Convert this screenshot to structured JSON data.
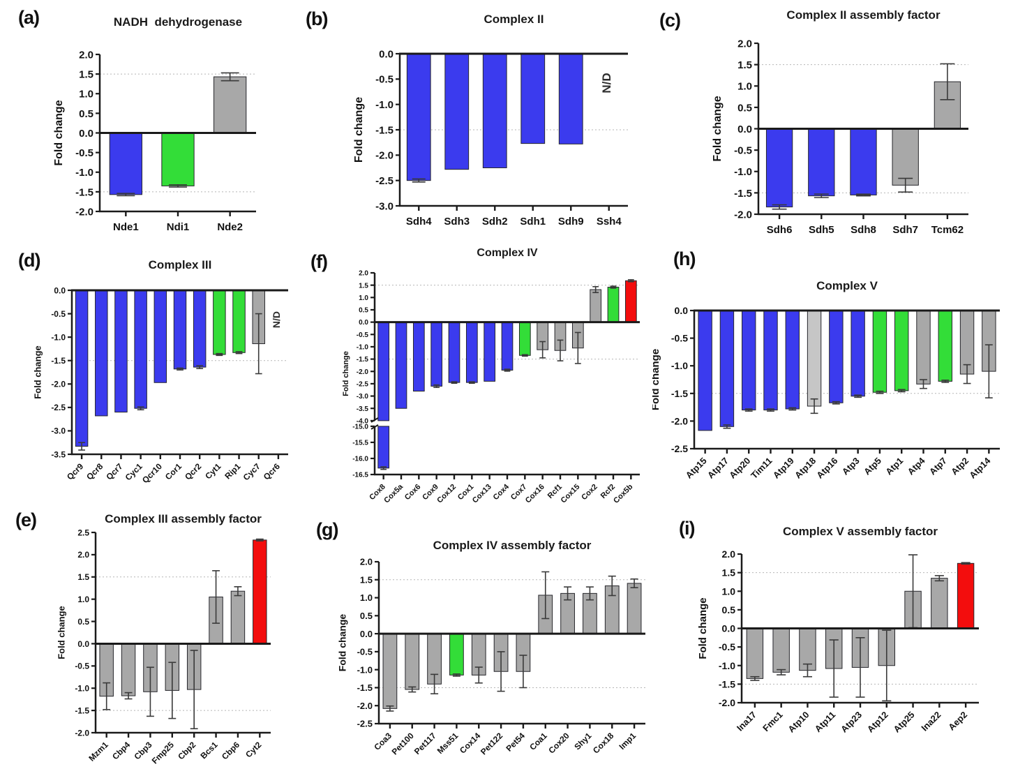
{
  "figure": {
    "background": "#ffffff",
    "colors": {
      "blue": "#3b3bee",
      "green": "#33dd38",
      "gray": "#a8a8a8",
      "lightgray": "#c6c6c6",
      "red": "#f30d0d",
      "bar_stroke": "#26262b",
      "error_bar": "#3a3a3a",
      "axis": "#1a1a1a",
      "ref_line": "#b5b5b5",
      "text": "#111111"
    }
  },
  "chart_data": [
    {
      "type": "bar",
      "panel": "(a)",
      "title": "NADH  dehydrogenase",
      "ylabel": "Fold change",
      "ylim": [
        2.0,
        -2.0
      ],
      "yticks": [
        2.0,
        1.5,
        1.0,
        0.5,
        0.0,
        -0.5,
        -1.0,
        -1.5,
        -2.0
      ],
      "ref_lines": [
        1.5,
        -1.5
      ],
      "categories": [
        "Nde1",
        "Ndi1",
        "Nde2"
      ],
      "values": [
        -1.57,
        -1.35,
        1.43
      ],
      "errors": [
        0.03,
        0.03,
        0.1
      ],
      "colors": [
        "blue",
        "green",
        "gray"
      ]
    },
    {
      "type": "bar",
      "panel": "(b)",
      "title": "Complex II",
      "ylabel": "Fold change",
      "ylim": [
        0.0,
        -3.0
      ],
      "yticks": [
        0.0,
        -0.5,
        -1.0,
        -1.5,
        -2.0,
        -2.5,
        -3.0
      ],
      "ref_lines": [
        -1.5
      ],
      "nd_text": "N/D",
      "categories": [
        "Sdh4",
        "Sdh3",
        "Sdh2",
        "Sdh1",
        "Sdh9",
        "Ssh4"
      ],
      "values": [
        -2.5,
        -2.28,
        -2.25,
        -1.77,
        -1.78,
        null
      ],
      "errors": [
        0.03,
        0,
        0,
        0,
        0,
        0
      ],
      "colors": [
        "blue",
        "blue",
        "blue",
        "blue",
        "blue",
        null
      ]
    },
    {
      "type": "bar",
      "panel": "(c)",
      "title": "Complex II assembly factor",
      "ylabel": "Fold change",
      "ylim": [
        2.0,
        -2.0
      ],
      "yticks": [
        2.0,
        1.5,
        1.0,
        0.5,
        0.0,
        -0.5,
        -1.0,
        -1.5,
        -2.0
      ],
      "ref_lines": [
        1.5,
        -1.5
      ],
      "categories": [
        "Sdh6",
        "Sdh5",
        "Sdh8",
        "Sdh7",
        "Tcm62"
      ],
      "values": [
        -1.83,
        -1.57,
        -1.55,
        -1.32,
        1.1
      ],
      "errors": [
        0.05,
        0.04,
        0.02,
        0.16,
        0.42
      ],
      "colors": [
        "blue",
        "blue",
        "blue",
        "gray",
        "gray"
      ]
    },
    {
      "type": "bar",
      "panel": "(d)",
      "title": "Complex III",
      "ylabel": "Fold change",
      "ylim": [
        0.0,
        -3.5
      ],
      "yticks": [
        0.0,
        -0.5,
        -1.0,
        -1.5,
        -2.0,
        -2.5,
        -3.0,
        -3.5
      ],
      "ref_lines": [
        -1.5
      ],
      "nd_text": "N/D",
      "categories": [
        "Qcr9",
        "Qcr8",
        "Qcr7",
        "Cyc1",
        "Qcr10",
        "Cor1",
        "Qcr2",
        "Cyt1",
        "Rip1",
        "Cyc7",
        "Qcr6"
      ],
      "values": [
        -3.33,
        -2.68,
        -2.6,
        -2.52,
        -1.97,
        -1.68,
        -1.64,
        -1.37,
        -1.33,
        -1.14,
        null
      ],
      "errors": [
        0.08,
        0,
        0,
        0.03,
        0,
        0.02,
        0.03,
        0.02,
        0.02,
        0.64,
        0
      ],
      "colors": [
        "blue",
        "blue",
        "blue",
        "blue",
        "blue",
        "blue",
        "blue",
        "green",
        "green",
        "gray",
        null
      ]
    },
    {
      "type": "bar",
      "panel": "(f)",
      "title": "Complex IV",
      "ylabel": "Fold change",
      "ylim": [
        2.0,
        -16.5
      ],
      "ybreak": {
        "upper_lim": [
          2.0,
          -4.0
        ],
        "lower_lim": [
          -15.0,
          -16.5
        ],
        "upper_ticks": [
          2.0,
          1.5,
          1.0,
          0.5,
          0.0,
          -0.5,
          -1.0,
          -1.5,
          -2.0,
          -2.5,
          -3.0,
          -3.5,
          -4.0
        ],
        "lower_ticks": [
          -15.0,
          -15.5,
          -16.0,
          -16.5
        ],
        "upper_frac": 0.754
      },
      "ref_lines": [
        1.5,
        -1.5
      ],
      "categories": [
        "Cox8",
        "Cox5a",
        "Cox6",
        "Cox9",
        "Cox12",
        "Cox1",
        "Cox13",
        "Cox4",
        "Cox7",
        "Cox16",
        "Rcf1",
        "Cox15",
        "Cox2",
        "Rcf2",
        "Cox5b"
      ],
      "values": [
        -16.3,
        -3.5,
        -2.8,
        -2.6,
        -2.45,
        -2.45,
        -2.4,
        -1.95,
        -1.35,
        -1.12,
        -1.15,
        -1.05,
        1.32,
        1.42,
        1.68
      ],
      "errors": [
        0.04,
        0,
        0,
        0.05,
        0.03,
        0.03,
        0,
        0.04,
        0.03,
        0.33,
        0.42,
        0.63,
        0.12,
        0.04,
        0.04
      ],
      "colors": [
        "blue",
        "blue",
        "blue",
        "blue",
        "blue",
        "blue",
        "blue",
        "blue",
        "green",
        "gray",
        "gray",
        "gray",
        "gray",
        "green",
        "red"
      ]
    },
    {
      "type": "bar",
      "panel": "(h)",
      "title": "Complex V",
      "ylabel": "Fold change",
      "ylim": [
        0.0,
        -2.5
      ],
      "yticks": [
        0.0,
        -0.5,
        -1.0,
        -1.5,
        -2.0,
        -2.5
      ],
      "ref_lines": [
        -1.5
      ],
      "categories": [
        "Atp15",
        "Atp17",
        "Atp20",
        "Tim11",
        "Atp19",
        "Atp18",
        "Atp16",
        "Atp3",
        "Atp5",
        "Atp1",
        "Atp4",
        "Atp7",
        "Atp2",
        "Atp14"
      ],
      "values": [
        -2.17,
        -2.1,
        -1.8,
        -1.8,
        -1.78,
        -1.73,
        -1.67,
        -1.55,
        -1.48,
        -1.45,
        -1.33,
        -1.28,
        -1.15,
        -1.1
      ],
      "errors": [
        0,
        0.03,
        0.02,
        0.02,
        0.02,
        0.13,
        0.02,
        0.02,
        0.02,
        0.02,
        0.08,
        0.02,
        0.17,
        0.48
      ],
      "colors": [
        "blue",
        "blue",
        "blue",
        "blue",
        "blue",
        "lightgray",
        "blue",
        "blue",
        "green",
        "green",
        "gray",
        "green",
        "gray",
        "gray"
      ]
    },
    {
      "type": "bar",
      "panel": "(e)",
      "title": "Complex III assembly factor",
      "ylabel": "Fold change",
      "ylim": [
        2.5,
        -2.0
      ],
      "yticks": [
        2.5,
        2.0,
        1.5,
        1.0,
        0.5,
        0.0,
        -0.5,
        -1.0,
        -1.5,
        -2.0
      ],
      "ref_lines": [
        1.5,
        -1.5
      ],
      "categories": [
        "Mzm1",
        "Cbp4",
        "Cbp3",
        "Fmp25",
        "Cbp2",
        "Bcs1",
        "Cbp6",
        "Cyt2"
      ],
      "values": [
        -1.18,
        -1.17,
        -1.08,
        -1.05,
        -1.03,
        1.05,
        1.18,
        2.33
      ],
      "errors": [
        0.3,
        0.07,
        0.55,
        0.63,
        0.88,
        0.59,
        0.1,
        0.02
      ],
      "colors": [
        "gray",
        "gray",
        "gray",
        "gray",
        "gray",
        "gray",
        "gray",
        "red"
      ]
    },
    {
      "type": "bar",
      "panel": "(g)",
      "title": "Complex IV assembly factor",
      "ylabel": "Fold change",
      "ylim": [
        2.0,
        -2.5
      ],
      "yticks": [
        2.0,
        1.5,
        1.0,
        0.5,
        0.0,
        -0.5,
        -1.0,
        -1.5,
        -2.0,
        -2.5
      ],
      "ref_lines": [
        1.5,
        -1.5
      ],
      "categories": [
        "Coa3",
        "Pet100",
        "Pet117",
        "Mss51",
        "Cox14",
        "Pet122",
        "Pet54",
        "Coa1",
        "Cox20",
        "Shy1",
        "Cox18",
        "Imp1"
      ],
      "values": [
        -2.08,
        -1.55,
        -1.4,
        -1.15,
        -1.15,
        -1.05,
        -1.05,
        1.07,
        1.12,
        1.12,
        1.33,
        1.4
      ],
      "errors": [
        0.07,
        0.07,
        0.27,
        0.03,
        0.22,
        0.55,
        0.45,
        0.65,
        0.18,
        0.18,
        0.27,
        0.12
      ],
      "colors": [
        "gray",
        "gray",
        "gray",
        "green",
        "gray",
        "gray",
        "gray",
        "gray",
        "gray",
        "gray",
        "gray",
        "gray"
      ]
    },
    {
      "type": "bar",
      "panel": "(i)",
      "title": "Complex V assembly factor",
      "ylabel": "Fold change",
      "ylim": [
        2.0,
        -2.0
      ],
      "yticks": [
        2.0,
        1.5,
        1.0,
        0.5,
        0.0,
        -0.5,
        -1.0,
        -1.5,
        -2.0
      ],
      "ref_lines": [
        1.5,
        -1.5
      ],
      "categories": [
        "Ina17",
        "Fmc1",
        "Atp10",
        "Atp11",
        "Atp23",
        "Atp12",
        "Atp25",
        "Ina22",
        "Aep2"
      ],
      "values": [
        -1.35,
        -1.18,
        -1.13,
        -1.08,
        -1.05,
        -1.0,
        1.0,
        1.35,
        1.75
      ],
      "errors": [
        0.05,
        0.07,
        0.17,
        0.77,
        0.8,
        0.95,
        0.98,
        0.07,
        0.02
      ],
      "colors": [
        "gray",
        "gray",
        "gray",
        "gray",
        "gray",
        "gray",
        "gray",
        "gray",
        "red"
      ]
    }
  ]
}
